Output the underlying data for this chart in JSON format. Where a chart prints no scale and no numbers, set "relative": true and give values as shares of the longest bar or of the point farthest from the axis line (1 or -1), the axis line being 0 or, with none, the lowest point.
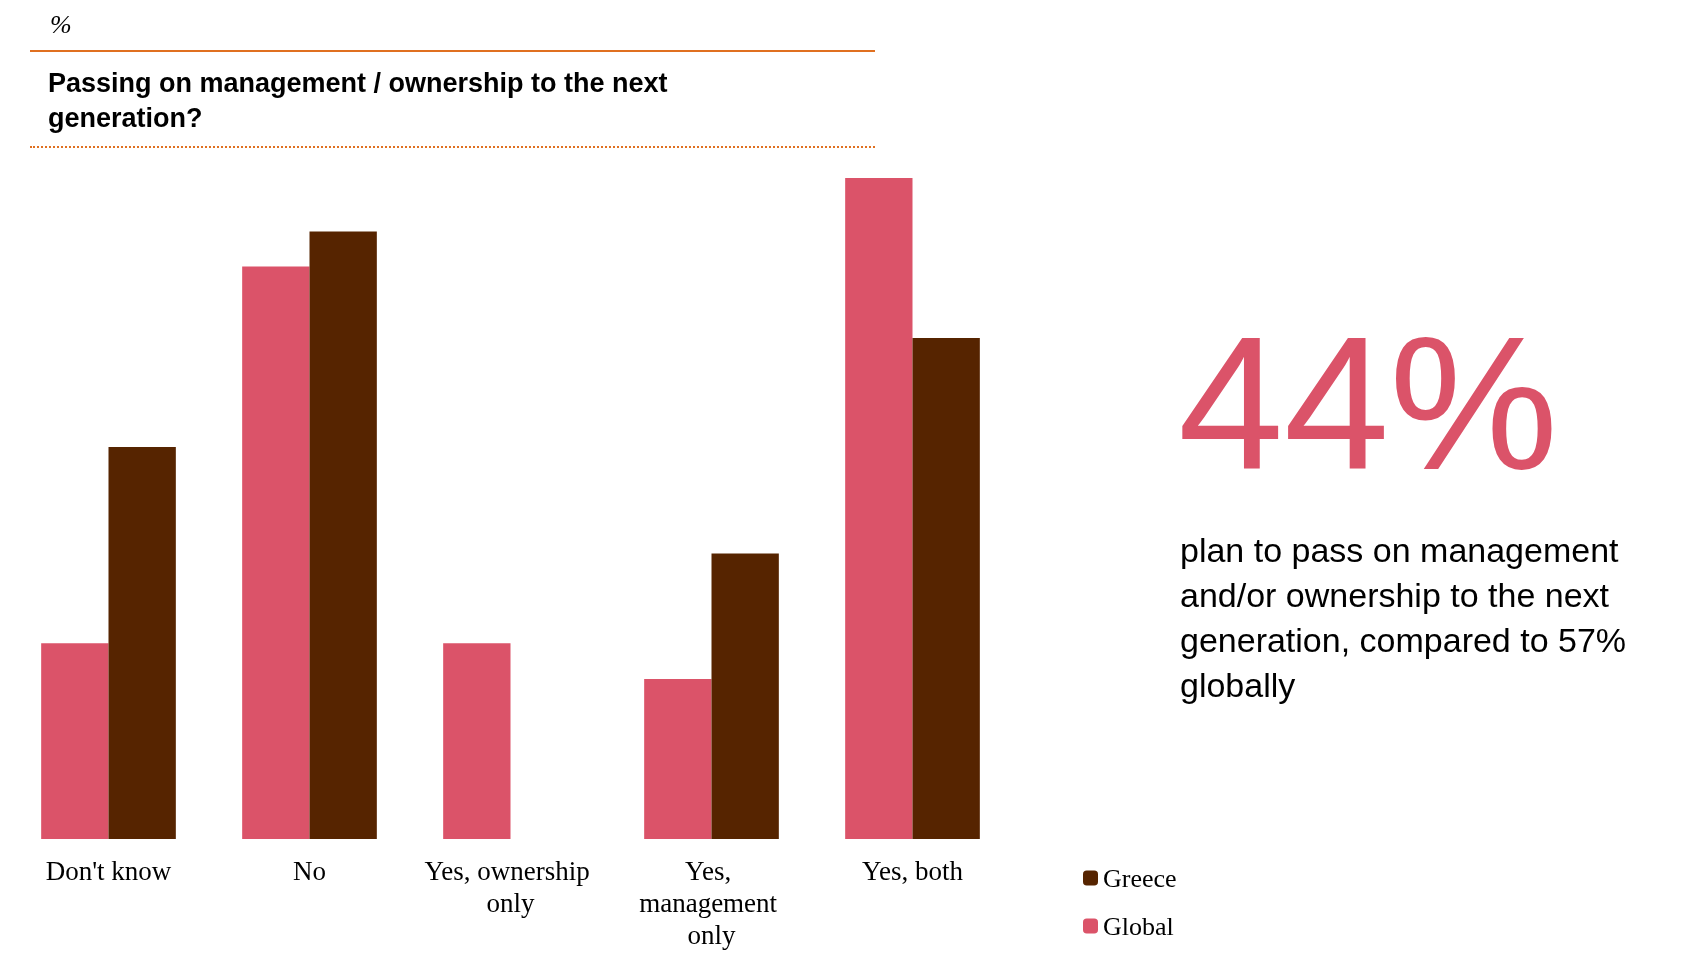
{
  "chart_data": {
    "type": "bar",
    "title": "Passing on management / ownership to the next generation?",
    "relative": true,
    "categories": [
      "Don't know",
      "No",
      "Yes, ownership only",
      "Yes, management only",
      "Yes, both"
    ],
    "series": [
      {
        "name": "Global",
        "color": "#db5369",
        "values": [
          0.296,
          0.866,
          0.296,
          0.242,
          1
        ]
      },
      {
        "name": "Greece",
        "color": "#562400",
        "values": [
          0.593,
          0.919,
          0,
          0.432,
          0.758
        ]
      }
    ],
    "legend": "bottom right",
    "annotations": [
      "%",
      "44%",
      "plan to pass on management and/or ownership to the next generation, compared to 57% globally"
    ]
  }
}
